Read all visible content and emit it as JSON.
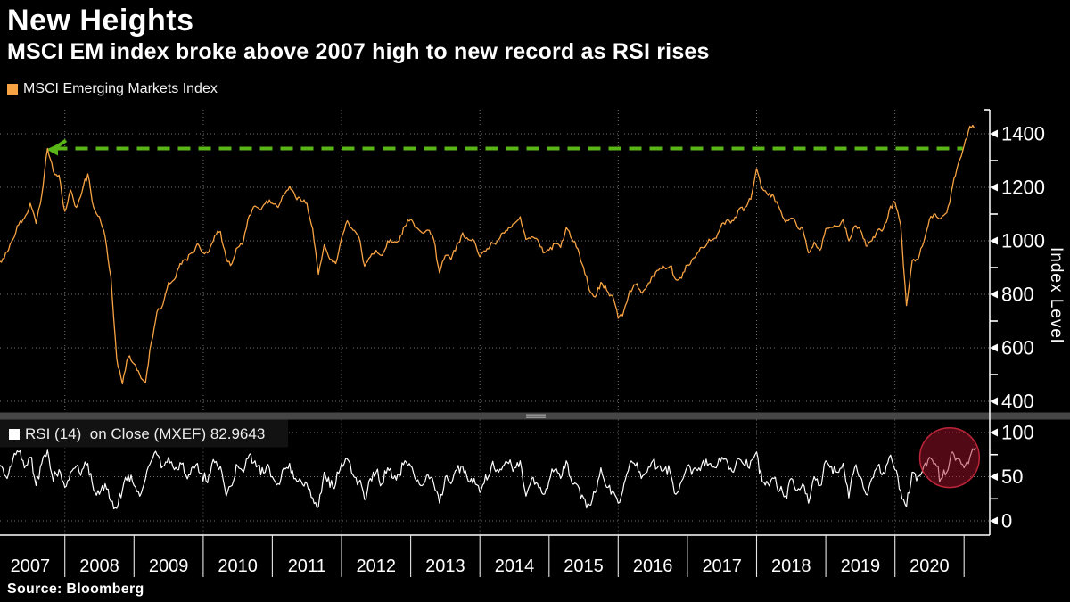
{
  "header": {
    "title": "New Heights",
    "subtitle": "MSCI EM index broke above 2007 high to new record as RSI rises"
  },
  "source": "Source: Bloomberg",
  "colors": {
    "background": "#000000",
    "price_line": "#f8a343",
    "rsi_line": "#ffffff",
    "reference_green": "#5ab517",
    "grid": "#6f6f6f",
    "axis": "#ffffff",
    "divider": "#464646",
    "divider_grip": "#9a9a9a",
    "highlight_red_fill": "rgba(170,20,44,0.48)",
    "highlight_red_stroke": "rgba(205,40,62,0.9)",
    "legend_box": "#121212",
    "text": "#ffffff"
  },
  "chart_data": {
    "type": "line",
    "x_axis": {
      "start_year": 2007,
      "end_year": 2021.2,
      "year_labels": [
        "2007",
        "2008",
        "2009",
        "2010",
        "2011",
        "2012",
        "2013",
        "2014",
        "2015",
        "2016",
        "2017",
        "2018",
        "2019",
        "2020"
      ],
      "tick_interval_years": 1,
      "gridline_interval_years": 2
    },
    "panels": [
      {
        "name": "price",
        "legend": "MSCI Emerging Markets Index",
        "ylabel": "Index Level",
        "ylim": [
          350,
          1490
        ],
        "yticks_labeled": [
          400,
          600,
          800,
          1000,
          1200,
          1400
        ],
        "yticks_minor": [
          500,
          700,
          900,
          1100,
          1300
        ],
        "grid": true,
        "reference_line": {
          "value": 1345,
          "meaning": "2007 record high",
          "style": "dashed",
          "from_year": 2007.83,
          "to_year": 2020.98
        },
        "series": {
          "start": "2007-01",
          "step": "1 month",
          "values": [
            930,
            920,
            958,
            1005,
            1060,
            1085,
            1140,
            1065,
            1170,
            1345,
            1260,
            1245,
            1110,
            1190,
            1125,
            1185,
            1250,
            1125,
            1090,
            1015,
            865,
            560,
            465,
            565,
            540,
            500,
            470,
            620,
            735,
            760,
            845,
            855,
            915,
            930,
            955,
            990,
            955,
            960,
            1020,
            1035,
            935,
            915,
            975,
            1000,
            1095,
            1130,
            1115,
            1150,
            1140,
            1125,
            1170,
            1205,
            1165,
            1150,
            1140,
            1045,
            875,
            985,
            930,
            915,
            1010,
            1075,
            1040,
            1015,
            905,
            940,
            965,
            945,
            1000,
            995,
            1000,
            1055,
            1080,
            1050,
            1030,
            1040,
            1005,
            880,
            945,
            930,
            985,
            1030,
            1005,
            1000,
            940,
            960,
            995,
            1000,
            1030,
            1050,
            1065,
            1090,
            1005,
            1015,
            1005,
            955,
            965,
            990,
            975,
            1050,
            1005,
            970,
            900,
            815,
            790,
            845,
            815,
            795,
            710,
            740,
            815,
            835,
            805,
            830,
            870,
            890,
            900,
            905,
            855,
            860,
            910,
            935,
            960,
            975,
            1000,
            1010,
            1065,
            1080,
            1075,
            1120,
            1125,
            1155,
            1270,
            1195,
            1170,
            1165,
            1120,
            1070,
            1085,
            1055,
            1045,
            955,
            995,
            965,
            1045,
            1050,
            1055,
            1080,
            1000,
            1055,
            1040,
            980,
            1000,
            1040,
            1045,
            1115,
            1145,
            1060,
            758,
            925,
            930,
            995,
            1080,
            1100,
            1085,
            1105,
            1205,
            1290,
            1355,
            1428,
            1420
          ]
        }
      },
      {
        "name": "rsi",
        "legend": "RSI (14)  on Close (MXEF) 82.9643",
        "last_value": 82.9643,
        "ylim": [
          -16,
          115
        ],
        "yticks_labeled": [
          0,
          50,
          100
        ],
        "yticks_minor": [
          25,
          75
        ],
        "grid": true,
        "highlight": {
          "shape": "circle",
          "center_year": 2020.79,
          "center_rsi": 71.5,
          "radius_years": 0.43
        },
        "series": {
          "start": "2007-01",
          "step": "1 month",
          "values": [
            55,
            62,
            48,
            70,
            78,
            60,
            72,
            40,
            65,
            80,
            45,
            58,
            38,
            55,
            62,
            58,
            65,
            35,
            30,
            42,
            22,
            14,
            35,
            52,
            40,
            28,
            48,
            68,
            75,
            62,
            72,
            58,
            66,
            52,
            60,
            65,
            45,
            52,
            66,
            62,
            28,
            40,
            62,
            55,
            75,
            68,
            52,
            62,
            50,
            42,
            60,
            65,
            48,
            45,
            42,
            26,
            16,
            55,
            38,
            42,
            65,
            70,
            52,
            44,
            24,
            48,
            55,
            42,
            60,
            48,
            52,
            68,
            62,
            45,
            40,
            52,
            42,
            20,
            50,
            42,
            58,
            62,
            45,
            48,
            32,
            52,
            62,
            58,
            62,
            65,
            60,
            68,
            28,
            48,
            42,
            30,
            45,
            58,
            48,
            68,
            42,
            40,
            26,
            18,
            32,
            60,
            38,
            34,
            20,
            42,
            65,
            62,
            48,
            55,
            68,
            62,
            58,
            55,
            30,
            45,
            62,
            58,
            60,
            62,
            65,
            60,
            72,
            65,
            55,
            70,
            62,
            68,
            78,
            44,
            42,
            48,
            34,
            28,
            48,
            34,
            42,
            20,
            50,
            40,
            68,
            62,
            55,
            65,
            26,
            60,
            50,
            30,
            48,
            62,
            55,
            72,
            58,
            34,
            16,
            55,
            50,
            62,
            72,
            65,
            48,
            55,
            78,
            70,
            60,
            72,
            82.9643
          ]
        }
      }
    ]
  }
}
